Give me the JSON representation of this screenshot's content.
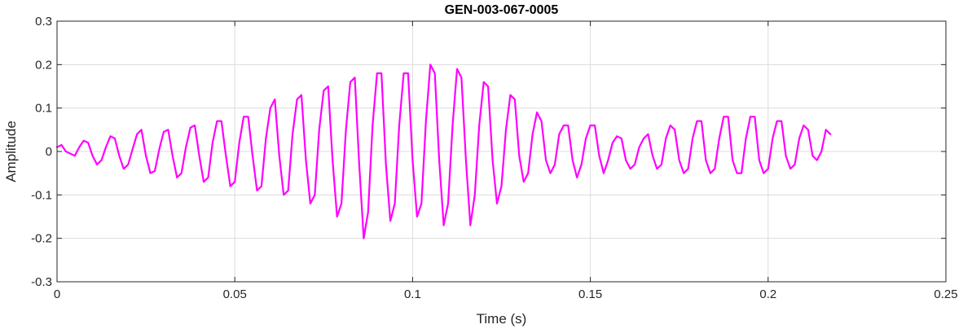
{
  "chart_data": {
    "type": "line",
    "title": "GEN-003-067-0005",
    "xlabel": "Time (s)",
    "ylabel": "Amplitude",
    "xlim": [
      0,
      0.25
    ],
    "ylim": [
      -0.3,
      0.3
    ],
    "xticks": [
      0,
      0.05,
      0.1,
      0.15,
      0.2,
      0.25
    ],
    "xtick_labels": [
      "0",
      "0.05",
      "0.1",
      "0.15",
      "0.2",
      "0.25"
    ],
    "yticks": [
      -0.3,
      -0.2,
      -0.1,
      0,
      0.1,
      0.2,
      0.3
    ],
    "ytick_labels": [
      "-0.3",
      "-0.2",
      "-0.1",
      "0",
      "0.1",
      "0.2",
      "0.3"
    ],
    "grid": true,
    "series": [
      {
        "color": "#ff00ff",
        "x": [
          0,
          0.00125,
          0.0025,
          0.00375,
          0.005,
          0.00625,
          0.0075,
          0.00875,
          0.01,
          0.01125,
          0.0125,
          0.01375,
          0.015,
          0.01625,
          0.0175,
          0.01875,
          0.02,
          0.02125,
          0.0225,
          0.02375,
          0.025,
          0.02625,
          0.0275,
          0.02875,
          0.03,
          0.03125,
          0.0325,
          0.03375,
          0.035,
          0.03625,
          0.0375,
          0.03875,
          0.04,
          0.04125,
          0.0425,
          0.04375,
          0.045,
          0.04625,
          0.0475,
          0.04875,
          0.05,
          0.05125,
          0.0525,
          0.05375,
          0.055,
          0.05625,
          0.0575,
          0.05875,
          0.06,
          0.06125,
          0.0625,
          0.06375,
          0.065,
          0.06625,
          0.0675,
          0.06875,
          0.07,
          0.07125,
          0.0725,
          0.07375,
          0.075,
          0.07625,
          0.0775,
          0.07875,
          0.08,
          0.08125,
          0.0825,
          0.08375,
          0.085,
          0.08625,
          0.0875,
          0.08875,
          0.09,
          0.09125,
          0.0925,
          0.09375,
          0.095,
          0.09625,
          0.0975,
          0.09875,
          0.1,
          0.10125,
          0.1025,
          0.10375,
          0.105,
          0.10625,
          0.1075,
          0.10875,
          0.11,
          0.11125,
          0.1125,
          0.11375,
          0.115,
          0.11625,
          0.1175,
          0.11875,
          0.12,
          0.12125,
          0.1225,
          0.12375,
          0.125,
          0.12625,
          0.1275,
          0.12875,
          0.13,
          0.13125,
          0.1325,
          0.13375,
          0.135,
          0.13625,
          0.1375,
          0.13875,
          0.14,
          0.14125,
          0.1425,
          0.14375,
          0.145,
          0.14625,
          0.1475,
          0.14875,
          0.15,
          0.15125,
          0.1525,
          0.15375,
          0.155,
          0.15625,
          0.1575,
          0.15875,
          0.16,
          0.16125,
          0.1625,
          0.16375,
          0.165,
          0.16625,
          0.1675,
          0.16875,
          0.17,
          0.17125,
          0.1725,
          0.17375,
          0.175,
          0.17625,
          0.1775,
          0.17875,
          0.18,
          0.18125,
          0.1825,
          0.18375,
          0.185,
          0.18625,
          0.1875,
          0.18875,
          0.19,
          0.19125,
          0.1925,
          0.19375,
          0.195,
          0.19625,
          0.1975,
          0.19875,
          0.2,
          0.20125,
          0.2025,
          0.20375,
          0.205,
          0.20625,
          0.2075,
          0.20875,
          0.21,
          0.21125,
          0.2125,
          0.21375,
          0.215,
          0.21625,
          0.2175
        ],
        "y": [
          0.01,
          0.015,
          0.0,
          -0.005,
          -0.01,
          0.01,
          0.025,
          0.02,
          -0.01,
          -0.03,
          -0.02,
          0.01,
          0.035,
          0.03,
          -0.01,
          -0.04,
          -0.03,
          0.005,
          0.04,
          0.05,
          -0.01,
          -0.05,
          -0.045,
          0.005,
          0.045,
          0.05,
          -0.01,
          -0.06,
          -0.05,
          0.01,
          0.055,
          0.06,
          -0.01,
          -0.07,
          -0.06,
          0.02,
          0.07,
          0.07,
          -0.01,
          -0.08,
          -0.07,
          0.02,
          0.08,
          0.08,
          -0.01,
          -0.09,
          -0.08,
          0.03,
          0.1,
          0.12,
          -0.01,
          -0.1,
          -0.09,
          0.04,
          0.12,
          0.13,
          -0.02,
          -0.12,
          -0.1,
          0.05,
          0.14,
          0.15,
          -0.02,
          -0.15,
          -0.12,
          0.05,
          0.16,
          0.17,
          -0.03,
          -0.2,
          -0.14,
          0.06,
          0.18,
          0.18,
          -0.03,
          -0.16,
          -0.12,
          0.06,
          0.18,
          0.18,
          -0.02,
          -0.15,
          -0.12,
          0.07,
          0.2,
          0.18,
          -0.02,
          -0.17,
          -0.12,
          0.06,
          0.19,
          0.17,
          -0.02,
          -0.17,
          -0.1,
          0.06,
          0.16,
          0.15,
          -0.02,
          -0.12,
          -0.08,
          0.05,
          0.13,
          0.12,
          -0.01,
          -0.07,
          -0.05,
          0.04,
          0.09,
          0.07,
          -0.02,
          -0.05,
          -0.03,
          0.04,
          0.06,
          0.06,
          -0.02,
          -0.06,
          -0.03,
          0.03,
          0.06,
          0.06,
          -0.01,
          -0.05,
          -0.02,
          0.02,
          0.035,
          0.03,
          -0.02,
          -0.04,
          -0.03,
          0.01,
          0.03,
          0.04,
          -0.01,
          -0.04,
          -0.03,
          0.03,
          0.06,
          0.05,
          -0.02,
          -0.05,
          -0.04,
          0.03,
          0.07,
          0.07,
          -0.02,
          -0.05,
          -0.04,
          0.03,
          0.08,
          0.08,
          -0.02,
          -0.05,
          -0.05,
          0.03,
          0.08,
          0.08,
          -0.02,
          -0.05,
          -0.04,
          0.03,
          0.07,
          0.07,
          -0.01,
          -0.04,
          -0.03,
          0.03,
          0.06,
          0.05,
          -0.01,
          -0.02,
          0.0,
          0.05,
          0.04
        ]
      }
    ]
  }
}
